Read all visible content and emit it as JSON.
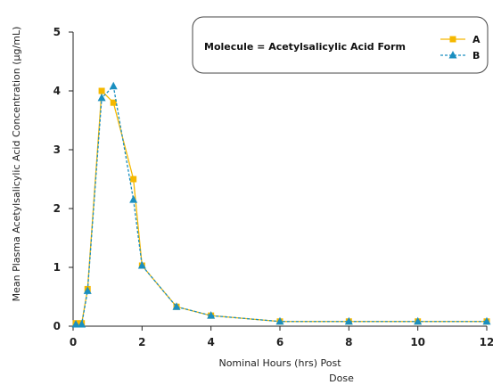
{
  "chart_data": {
    "type": "line",
    "x_title_line1": "Nominal Hours (hrs) Post",
    "x_title_line2": "Dose",
    "ylabel": "Mean Plasma Acetylsalicylic Acid Concentration (μg/mL)",
    "xlim": [
      0,
      12
    ],
    "ylim": [
      0,
      5
    ],
    "x_ticks": [
      0,
      2,
      4,
      6,
      8,
      10,
      12
    ],
    "y_ticks": [
      0,
      1,
      2,
      3,
      4,
      5
    ],
    "grid": false,
    "legend": {
      "placement": "top-right",
      "title": "Molecule = Acetylsalicylic Acid Form",
      "entries": [
        "A",
        "B"
      ]
    },
    "series": [
      {
        "name": "A",
        "color": "#f5b800",
        "marker": "square",
        "line": "solid",
        "x": [
          0.08,
          0.25,
          0.42,
          0.83,
          1.17,
          1.75,
          2.0,
          3.0,
          4.0,
          6.0,
          8.0,
          10.0,
          12.0
        ],
        "y": [
          0.05,
          0.05,
          0.63,
          4.0,
          3.8,
          2.5,
          1.03,
          0.33,
          0.18,
          0.08,
          0.08,
          0.08,
          0.08
        ]
      },
      {
        "name": "B",
        "color": "#1a8fc0",
        "marker": "triangle",
        "line": "dashed",
        "x": [
          0.08,
          0.25,
          0.42,
          0.83,
          1.17,
          1.75,
          2.0,
          3.0,
          4.0,
          6.0,
          8.0,
          10.0,
          12.0
        ],
        "y": [
          0.03,
          0.03,
          0.6,
          3.88,
          4.08,
          2.15,
          1.03,
          0.33,
          0.18,
          0.08,
          0.08,
          0.08,
          0.08
        ]
      }
    ]
  }
}
